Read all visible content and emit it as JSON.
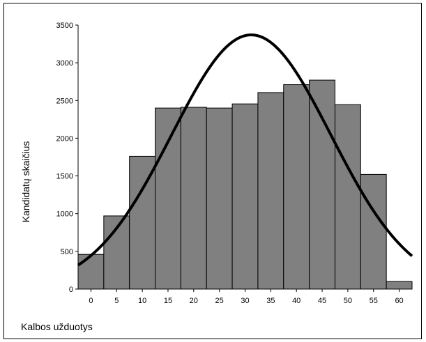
{
  "chart_data": {
    "type": "bar",
    "title": "",
    "xlabel": "Kalbos užduotys",
    "ylabel": "Kandidatų skaičius",
    "categories": [
      "0",
      "5",
      "10",
      "15",
      "20",
      "25",
      "30",
      "35",
      "40",
      "45",
      "50",
      "55",
      "60"
    ],
    "values": [
      460,
      970,
      1760,
      2400,
      2410,
      2400,
      2455,
      2605,
      2710,
      2770,
      2445,
      1520,
      100
    ],
    "ylim": [
      0,
      3500
    ],
    "yticks": [
      0,
      500,
      1000,
      1500,
      2000,
      2500,
      3000,
      3500
    ],
    "grid": false,
    "bar_color": "#808080",
    "curve": {
      "type": "normal",
      "mean": 31.2,
      "sd": 15.5,
      "peak": 3370,
      "x_range": [
        -2.5,
        62.5
      ],
      "color": "#000000"
    }
  }
}
